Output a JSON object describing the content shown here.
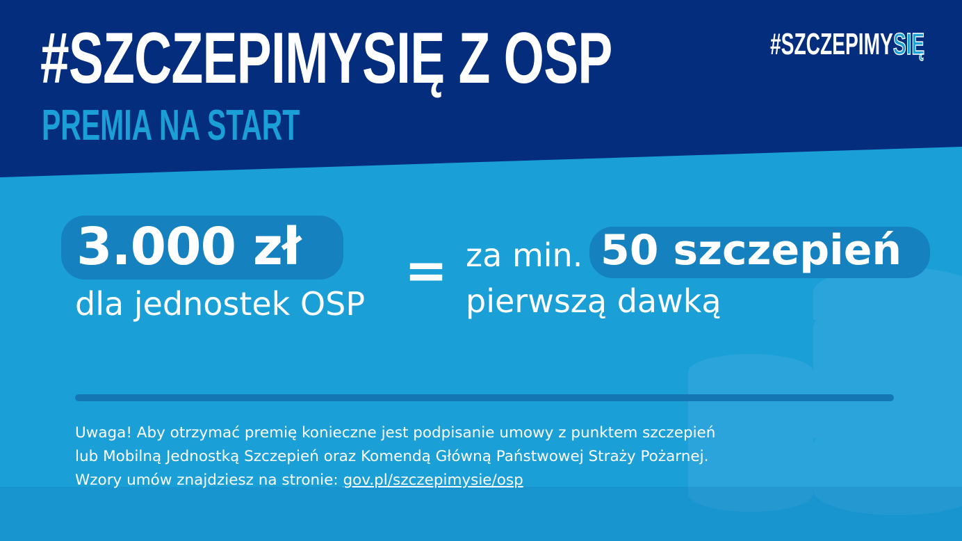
{
  "header": {
    "title": "#SZCZEPIMYSIĘ Z OSP",
    "subtitle": "PREMIA NA START",
    "hashtag_main": "#SZCZEPIMY",
    "hashtag_outline": "SIĘ"
  },
  "offer": {
    "amount": "3.000 zł",
    "amount_caption": "dla jednostek OSP",
    "equals": "=",
    "condition_prefix": "za min.",
    "condition_count": "50 szczepień",
    "condition_suffix": "pierwszą dawką"
  },
  "note": {
    "line1": "Uwaga! Aby otrzymać premię konieczne jest podpisanie umowy z punktem szczepień",
    "line2": "lub Mobilną Jednostką Szczepień oraz Komendą Główną Państwowej Straży Pożarnej.",
    "line3_prefix": "Wzory umów znajdziesz na stronie: ",
    "link": "gov.pl/szczepimysie/osp"
  },
  "colors": {
    "dark_blue": "#052d7e",
    "light_blue": "#1a9fd7",
    "pill": "#1581bf",
    "coins": "#3aaee3"
  },
  "icons": [
    "coin-stack-icon"
  ]
}
